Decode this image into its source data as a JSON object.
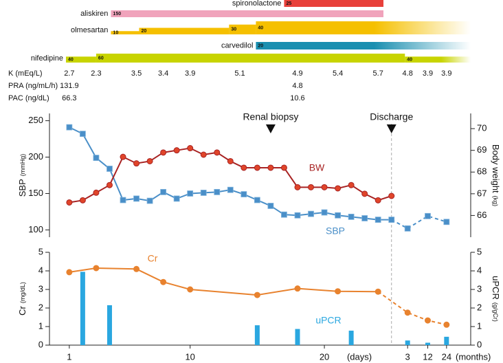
{
  "drugs": [
    {
      "name": "spironolactone",
      "color": "#e8403a",
      "segments": [
        {
          "dose": 25,
          "from": 17.0,
          "to": 24.4
        }
      ]
    },
    {
      "name": "aliskiren",
      "color": "#f0a3bb",
      "segments": [
        {
          "dose": 150,
          "from": 4.1,
          "to": 24.4
        }
      ]
    },
    {
      "name": "olmesartan",
      "color": "#f5c000",
      "segments": [
        {
          "dose": 10,
          "from": 4.1,
          "to": 6.2
        },
        {
          "dose": 20,
          "from": 6.2,
          "to": 12.9
        },
        {
          "dose": 30,
          "from": 12.9,
          "to": 14.9
        },
        {
          "dose": 40,
          "from": 14.9,
          "continues": true
        }
      ]
    },
    {
      "name": "carvedilol",
      "color": "#1a8fb0",
      "segments": [
        {
          "dose": 20,
          "from": 14.9,
          "continues": true
        }
      ]
    },
    {
      "name": "nifedipine",
      "color": "#c8d400",
      "segments": [
        {
          "dose": 40,
          "from": 0.75,
          "to": 3.0
        },
        {
          "dose": 60,
          "from": 3.0,
          "to": 26.0
        },
        {
          "dose": 40,
          "from": 26.0,
          "continues": true
        }
      ]
    }
  ],
  "labs": [
    {
      "label": "K (mEq/L)",
      "x": [
        1,
        3,
        6,
        8,
        10,
        13.7,
        18,
        21,
        24,
        26.2,
        27.7,
        29.1
      ],
      "values": [
        2.7,
        2.3,
        3.5,
        3.4,
        3.9,
        5.1,
        4.9,
        5.4,
        5.7,
        4.8,
        3.9,
        3.9
      ]
    },
    {
      "label": "PRA (ng/mL/h)",
      "x": [
        1,
        18
      ],
      "values": [
        131.9,
        4.8
      ]
    },
    {
      "label": "PAC (ng/dL)",
      "x": [
        1,
        18
      ],
      "values": [
        66.3,
        10.6
      ]
    }
  ],
  "chart_data": [
    {
      "type": "line",
      "y_label": "SBP",
      "y_label_unit": "(mmHg)",
      "y2_label": "Body weight",
      "y2_label_unit": "(kg)",
      "xlim": [
        0.7,
        30.9
      ],
      "ylim": [
        90,
        260
      ],
      "yticks": [
        100,
        150,
        200,
        250
      ],
      "y2lim": [
        65,
        70.7
      ],
      "y2ticks": [
        66,
        67,
        68,
        69,
        70
      ],
      "annotations": [
        {
          "label": "Renal biopsy",
          "x": 16
        },
        {
          "label": "Discharge",
          "x": 25,
          "line": true
        }
      ],
      "series": [
        {
          "name": "SBP",
          "color": "#4a8fc8",
          "marker": "square",
          "marker_color": "#4a8fc8",
          "x": [
            1,
            2,
            3,
            4,
            5,
            6,
            7,
            8,
            9,
            10,
            11,
            12,
            13,
            14,
            15,
            16,
            17,
            18,
            19,
            20,
            21,
            22,
            23,
            24,
            25,
            26.2,
            27.7,
            29.1
          ],
          "values": [
            241,
            232,
            199,
            184,
            141,
            143,
            140,
            152,
            143,
            150,
            151,
            152,
            155,
            149,
            141,
            133,
            121,
            120,
            122,
            124,
            120,
            118,
            116,
            114,
            114,
            102,
            119,
            111
          ]
        },
        {
          "name": "BW",
          "color": "#a82323",
          "marker": "circle",
          "marker_color": "#e0452a",
          "axis": "y2",
          "x": [
            1,
            2,
            3,
            4,
            5,
            6,
            7,
            8,
            9,
            10,
            11,
            12,
            13,
            14,
            15,
            16,
            17,
            18,
            19,
            20,
            21,
            22,
            23,
            24,
            25
          ],
          "values": [
            66.6,
            66.7,
            67.05,
            67.4,
            68.7,
            68.4,
            68.5,
            68.9,
            69.0,
            69.1,
            68.8,
            68.9,
            68.5,
            68.2,
            68.2,
            68.2,
            68.2,
            67.3,
            67.3,
            67.3,
            67.25,
            67.4,
            67.0,
            66.7,
            66.9
          ]
        }
      ]
    },
    {
      "type": "line",
      "y_label": "Cr",
      "y_label_unit": "(mg/dL)",
      "y2_label": "uPCR",
      "y2_label_unit": "(g/gCr)",
      "xlim": [
        0.7,
        30.9
      ],
      "xticks": [
        1,
        10,
        20,
        {
          "value": 26.2,
          "label": "3"
        },
        {
          "value": 27.7,
          "label": "12"
        },
        {
          "value": 29.1,
          "label": "24"
        }
      ],
      "x_unit_days": "(days)",
      "x_unit_months": "(months)",
      "ylim": [
        0,
        5
      ],
      "yticks": [
        0,
        1,
        2,
        3,
        4,
        5
      ],
      "y2lim": [
        0,
        5
      ],
      "y2ticks": [
        0,
        1,
        2,
        3,
        4,
        5
      ],
      "series": [
        {
          "name": "Cr",
          "color": "#e8822e",
          "marker": "circle",
          "marker_color": "#e8822e",
          "x": [
            1,
            3,
            6,
            8,
            10,
            15,
            18,
            21,
            24,
            26.2,
            27.7,
            29.1
          ],
          "values": [
            3.93,
            4.15,
            4.1,
            3.4,
            3.0,
            2.7,
            3.05,
            2.9,
            2.88,
            1.75,
            1.33,
            1.1
          ]
        },
        {
          "name": "uPCR",
          "type": "bar",
          "color": "#2aa7e0",
          "axis": "y2",
          "x": [
            2,
            4,
            15,
            18,
            22,
            26.2,
            27.7,
            29.1
          ],
          "values": [
            3.95,
            2.15,
            1.07,
            0.87,
            0.78,
            0.25,
            0.13,
            0.45
          ]
        }
      ]
    }
  ]
}
